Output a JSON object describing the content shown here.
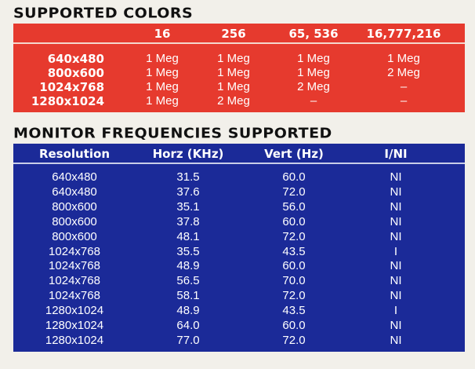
{
  "colors_section": {
    "title": "SUPPORTED COLORS",
    "columns": [
      "16",
      "256",
      "65, 536",
      "16,777,216"
    ],
    "rows": [
      {
        "resolution": "640x480",
        "values": [
          "1 Meg",
          "1 Meg",
          "1 Meg",
          "1 Meg"
        ]
      },
      {
        "resolution": "800x600",
        "values": [
          "1 Meg",
          "1 Meg",
          "1 Meg",
          "2 Meg"
        ]
      },
      {
        "resolution": "1024x768",
        "values": [
          "1 Meg",
          "1 Meg",
          "2 Meg",
          "–"
        ]
      },
      {
        "resolution": "1280x1024",
        "values": [
          "1 Meg",
          "2 Meg",
          "–",
          "–"
        ]
      }
    ],
    "color": "#e63a2e"
  },
  "frequencies_section": {
    "title": "MONITOR FREQUENCIES SUPPORTED",
    "columns": [
      "Resolution",
      "Horz (KHz)",
      "Vert (Hz)",
      "I/NI"
    ],
    "rows": [
      [
        "640x480",
        "31.5",
        "60.0",
        "NI"
      ],
      [
        "640x480",
        "37.6",
        "72.0",
        "NI"
      ],
      [
        "800x600",
        "35.1",
        "56.0",
        "NI"
      ],
      [
        "800x600",
        "37.8",
        "60.0",
        "NI"
      ],
      [
        "800x600",
        "48.1",
        "72.0",
        "NI"
      ],
      [
        "1024x768",
        "35.5",
        "43.5",
        "I"
      ],
      [
        "1024x768",
        "48.9",
        "60.0",
        "NI"
      ],
      [
        "1024x768",
        "56.5",
        "70.0",
        "NI"
      ],
      [
        "1024x768",
        "58.1",
        "72.0",
        "NI"
      ],
      [
        "1280x1024",
        "48.9",
        "43.5",
        "I"
      ],
      [
        "1280x1024",
        "64.0",
        "60.0",
        "NI"
      ],
      [
        "1280x1024",
        "77.0",
        "72.0",
        "NI"
      ]
    ],
    "color": "#1b2a98"
  }
}
